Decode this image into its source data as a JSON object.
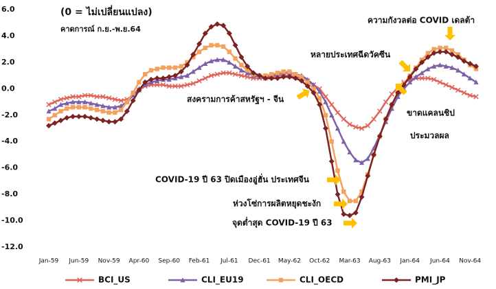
{
  "chart_data": {
    "type": "line",
    "annotations": [
      "(0 = ไม่เปลี่ยนแปลง)",
      "คาดการณ์ ก.ย.-พ.ย.64",
      "ความกังวลต่อ COVID เดลต้า",
      "หลายประเทศฉีดวัคซีน",
      "สงครามการค้าสหรัฐฯ - จีน",
      "ขาดแคลนชิป",
      "ประมวลผล",
      "COVID-19 ปี 63 ปิดเมืองอู่ฮั่น ประเทศจีน",
      "ห่วงโซ่การผลิตหยุดชะงัก",
      "จุดต่ำสุด COVID-19 ปี 63"
    ],
    "categories": [
      "Jan-59",
      null,
      null,
      null,
      null,
      "Jun-59",
      null,
      null,
      null,
      null,
      "Nov-59",
      null,
      null,
      null,
      null,
      "Apr-60",
      null,
      null,
      null,
      null,
      "Sep-60",
      null,
      null,
      null,
      null,
      "Feb-61",
      null,
      null,
      null,
      null,
      "Jul-61",
      null,
      null,
      null,
      null,
      "Dec-61",
      null,
      null,
      null,
      null,
      "May-62",
      null,
      null,
      null,
      null,
      "Oct-62",
      null,
      null,
      null,
      null,
      "Mar-63",
      null,
      null,
      null,
      null,
      "Aug-63",
      null,
      null,
      null,
      null,
      "Jan-64",
      null,
      null,
      null,
      null,
      "Jun-64",
      null,
      null,
      null,
      null,
      "Nov-64",
      null
    ],
    "series": [
      {
        "name": "BCI_US",
        "color": "#e0635a",
        "marker": "x",
        "values": [
          -1.2,
          -1.0,
          -0.8,
          -0.7,
          -0.6,
          -0.6,
          -0.5,
          -0.5,
          -0.6,
          -0.6,
          -0.7,
          -0.8,
          -0.9,
          -0.8,
          -0.5,
          -0.1,
          0.2,
          0.3,
          0.3,
          0.3,
          0.2,
          0.2,
          0.2,
          0.3,
          0.4,
          0.6,
          0.8,
          1.0,
          1.1,
          1.2,
          1.2,
          1.1,
          1.0,
          0.9,
          0.8,
          0.8,
          0.8,
          0.9,
          1.0,
          1.0,
          1.0,
          0.9,
          0.8,
          0.6,
          0.3,
          0.0,
          -0.6,
          -1.2,
          -1.8,
          -2.3,
          -2.7,
          -2.9,
          -3.0,
          -2.8,
          -2.3,
          -1.7,
          -1.0,
          -0.4,
          0.1,
          0.5,
          0.7,
          0.8,
          0.8,
          0.8,
          0.7,
          0.5,
          0.3,
          0.1,
          -0.1,
          -0.3,
          -0.5,
          -0.6
        ]
      },
      {
        "name": "CLI_EU19",
        "color": "#7d60a8",
        "marker": "triangle",
        "values": [
          -1.7,
          -1.5,
          -1.2,
          -1.1,
          -1.0,
          -1.0,
          -1.0,
          -1.1,
          -1.2,
          -1.3,
          -1.4,
          -1.4,
          -1.3,
          -1.0,
          -0.5,
          0.0,
          0.3,
          0.5,
          0.6,
          0.7,
          0.7,
          0.8,
          0.9,
          1.0,
          1.3,
          1.6,
          1.9,
          2.1,
          2.2,
          2.2,
          2.0,
          1.7,
          1.4,
          1.2,
          1.0,
          0.9,
          0.9,
          1.0,
          1.1,
          1.2,
          1.2,
          1.1,
          1.0,
          0.7,
          0.3,
          -0.2,
          -1.0,
          -2.0,
          -3.0,
          -4.0,
          -4.8,
          -5.4,
          -5.6,
          -5.3,
          -4.5,
          -3.5,
          -2.5,
          -1.5,
          -0.6,
          0.0,
          0.5,
          0.9,
          1.2,
          1.5,
          1.7,
          1.8,
          1.7,
          1.6,
          1.4,
          1.1,
          0.8,
          0.5
        ]
      },
      {
        "name": "CLI_OECD",
        "color": "#f4a15d",
        "marker": "square",
        "values": [
          -2.3,
          -2.0,
          -1.7,
          -1.5,
          -1.4,
          -1.4,
          -1.4,
          -1.5,
          -1.6,
          -1.7,
          -1.8,
          -1.8,
          -1.6,
          -1.0,
          -0.3,
          0.5,
          1.1,
          1.4,
          1.5,
          1.6,
          1.6,
          1.6,
          1.7,
          2.0,
          2.4,
          2.8,
          3.1,
          3.3,
          3.3,
          3.2,
          2.8,
          2.3,
          1.8,
          1.4,
          1.1,
          1.0,
          1.0,
          1.1,
          1.2,
          1.3,
          1.3,
          1.1,
          0.9,
          0.5,
          0.0,
          -0.7,
          -2.0,
          -4.0,
          -6.2,
          -7.8,
          -8.5,
          -8.5,
          -7.8,
          -6.5,
          -5.0,
          -3.6,
          -2.3,
          -1.2,
          -0.3,
          0.4,
          1.0,
          1.6,
          2.2,
          2.7,
          3.0,
          3.1,
          3.1,
          2.9,
          2.6,
          2.2,
          1.8,
          1.5
        ]
      },
      {
        "name": "PMI_JP",
        "color": "#7b2222",
        "marker": "diamond",
        "values": [
          -2.8,
          -2.6,
          -2.4,
          -2.2,
          -2.1,
          -2.1,
          -2.1,
          -2.2,
          -2.3,
          -2.4,
          -2.5,
          -2.5,
          -2.3,
          -1.7,
          -0.9,
          -0.1,
          0.5,
          0.7,
          0.8,
          0.8,
          0.9,
          1.0,
          1.3,
          1.8,
          2.6,
          3.4,
          4.2,
          4.7,
          4.9,
          4.8,
          4.2,
          3.3,
          2.4,
          1.7,
          1.2,
          1.0,
          0.8,
          0.8,
          0.8,
          0.9,
          0.9,
          0.8,
          0.6,
          0.2,
          -0.3,
          -1.2,
          -3.0,
          -5.5,
          -8.0,
          -9.5,
          -9.6,
          -9.4,
          -8.2,
          -6.6,
          -5.0,
          -3.6,
          -2.3,
          -1.2,
          -0.3,
          0.3,
          0.9,
          1.5,
          2.0,
          2.4,
          2.7,
          2.8,
          2.8,
          2.6,
          2.4,
          2.1,
          1.9,
          1.7
        ]
      }
    ],
    "ylim": [
      -12,
      6
    ],
    "yticks": [
      {
        "value": -12,
        "label": "-12.0"
      },
      {
        "value": -10,
        "label": "-10.0"
      },
      {
        "value": -8,
        "label": "-8.0"
      },
      {
        "value": -6,
        "label": "-6.0"
      },
      {
        "value": -4,
        "label": "-4.0"
      },
      {
        "value": -2,
        "label": "-2.0"
      },
      {
        "value": 0,
        "label": "0.0"
      },
      {
        "value": 2,
        "label": "2.0"
      },
      {
        "value": 4,
        "label": "4.0"
      },
      {
        "value": 6,
        "label": "6.0"
      }
    ],
    "grid": false,
    "legend": "bottom"
  }
}
